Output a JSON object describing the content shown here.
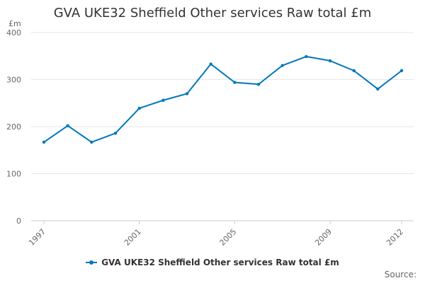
{
  "chart_data": {
    "type": "line",
    "title": "GVA UKE32 Sheffield Other services Raw total £m",
    "ylabel": "£m",
    "xlabel": "",
    "ylim": [
      0,
      400
    ],
    "yticks": [
      0,
      100,
      200,
      300,
      400
    ],
    "xticks": [
      "1997",
      "2001",
      "2005",
      "2009",
      "2012"
    ],
    "categories": [
      "1997",
      "1998",
      "1999",
      "2000",
      "2001",
      "2002",
      "2003",
      "2004",
      "2005",
      "2006",
      "2007",
      "2008",
      "2009",
      "2010",
      "2011",
      "2012"
    ],
    "series": [
      {
        "name": "GVA UKE32 Sheffield Other services Raw total £m",
        "color": "#0077bb",
        "values": [
          167,
          202,
          167,
          186,
          239,
          256,
          270,
          333,
          294,
          290,
          330,
          349,
          340,
          319,
          280,
          319
        ]
      }
    ],
    "legend_position": "bottom",
    "grid": true
  },
  "footer": {
    "source_label": "Source:"
  }
}
